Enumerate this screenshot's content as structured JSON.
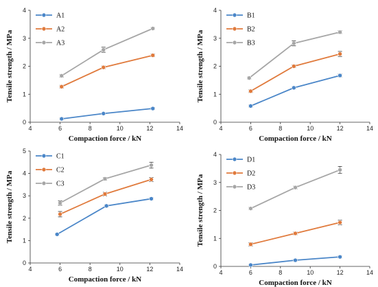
{
  "chart_data": [
    {
      "type": "line",
      "xlabel": "Compaction force / kN",
      "ylabel": "Tensile strength / MPa",
      "xlim": [
        4,
        14
      ],
      "ylim": [
        0,
        4
      ],
      "xticks": [
        4,
        6,
        8,
        10,
        12,
        14
      ],
      "yticks": [
        0,
        1,
        2,
        3,
        4
      ],
      "legend": "top-left",
      "grid": false,
      "series": [
        {
          "name": "A1",
          "color": "#4a86c8",
          "x": [
            6.1,
            8.9,
            12.2
          ],
          "y": [
            0.12,
            0.31,
            0.49
          ],
          "err": [
            0.04,
            0.03,
            0.04
          ]
        },
        {
          "name": "A2",
          "color": "#e07a3c",
          "x": [
            6.1,
            8.9,
            12.2
          ],
          "y": [
            1.27,
            1.96,
            2.39
          ],
          "err": [
            0.05,
            0.05,
            0.05
          ]
        },
        {
          "name": "A3",
          "color": "#a6a6a6",
          "x": [
            6.1,
            8.9,
            12.2
          ],
          "y": [
            1.66,
            2.59,
            3.35
          ],
          "err": [
            0.05,
            0.09,
            0.04
          ]
        }
      ]
    },
    {
      "type": "line",
      "xlabel": "Compaction force / kN",
      "ylabel": "Tensile strength / MPa",
      "xlim": [
        4,
        14
      ],
      "ylim": [
        0,
        4
      ],
      "xticks": [
        4,
        6,
        8,
        10,
        12,
        14
      ],
      "yticks": [
        0,
        1,
        2,
        3,
        4
      ],
      "legend": "top-left",
      "grid": false,
      "series": [
        {
          "name": "B1",
          "color": "#4a86c8",
          "x": [
            6.0,
            8.9,
            12.0
          ],
          "y": [
            0.58,
            1.23,
            1.67
          ],
          "err": [
            0.04,
            0.04,
            0.05
          ]
        },
        {
          "name": "B2",
          "color": "#e07a3c",
          "x": [
            6.0,
            8.9,
            12.0
          ],
          "y": [
            1.11,
            2.0,
            2.44
          ],
          "err": [
            0.05,
            0.05,
            0.09
          ]
        },
        {
          "name": "B3",
          "color": "#a6a6a6",
          "x": [
            5.9,
            8.9,
            12.0
          ],
          "y": [
            1.58,
            2.82,
            3.22
          ],
          "err": [
            0.04,
            0.09,
            0.05
          ]
        }
      ]
    },
    {
      "type": "line",
      "xlabel": "Compaction force / kN",
      "ylabel": "Tensile strength / MPa",
      "xlim": [
        4,
        14
      ],
      "ylim": [
        0,
        5
      ],
      "xticks": [
        4,
        6,
        8,
        10,
        12,
        14
      ],
      "yticks": [
        0,
        1,
        2,
        3,
        4,
        5
      ],
      "legend": "top-left",
      "grid": false,
      "series": [
        {
          "name": "C1",
          "color": "#4a86c8",
          "x": [
            5.8,
            9.1,
            12.1
          ],
          "y": [
            1.28,
            2.55,
            2.87
          ],
          "err": [
            0.04,
            0.05,
            0.05
          ]
        },
        {
          "name": "C2",
          "color": "#e07a3c",
          "x": [
            6.0,
            9.0,
            12.1
          ],
          "y": [
            2.18,
            3.08,
            3.73
          ],
          "err": [
            0.12,
            0.08,
            0.09
          ]
        },
        {
          "name": "C3",
          "color": "#a6a6a6",
          "x": [
            6.0,
            9.0,
            12.1
          ],
          "y": [
            2.68,
            3.76,
            4.37
          ],
          "err": [
            0.1,
            0.06,
            0.13
          ]
        }
      ]
    },
    {
      "type": "line",
      "xlabel": "Compaction force / kN",
      "ylabel": "Tensile strength / MPa",
      "xlim": [
        4,
        14
      ],
      "ylim": [
        0,
        4
      ],
      "xticks": [
        4,
        6,
        8,
        10,
        12,
        14
      ],
      "yticks": [
        0,
        1,
        2,
        3,
        4
      ],
      "legend": "top-left",
      "grid": false,
      "series": [
        {
          "name": "D1",
          "color": "#4a86c8",
          "x": [
            6.0,
            9.0,
            12.0
          ],
          "y": [
            0.05,
            0.22,
            0.34
          ],
          "err": [
            0.03,
            0.04,
            0.04
          ]
        },
        {
          "name": "D2",
          "color": "#e07a3c",
          "x": [
            6.0,
            9.0,
            12.0
          ],
          "y": [
            0.79,
            1.18,
            1.57
          ],
          "err": [
            0.06,
            0.05,
            0.08
          ]
        },
        {
          "name": "D3",
          "color": "#a6a6a6",
          "x": [
            6.0,
            9.0,
            12.0
          ],
          "y": [
            2.07,
            2.82,
            3.45
          ],
          "err": [
            0.04,
            0.05,
            0.12
          ]
        }
      ]
    }
  ]
}
